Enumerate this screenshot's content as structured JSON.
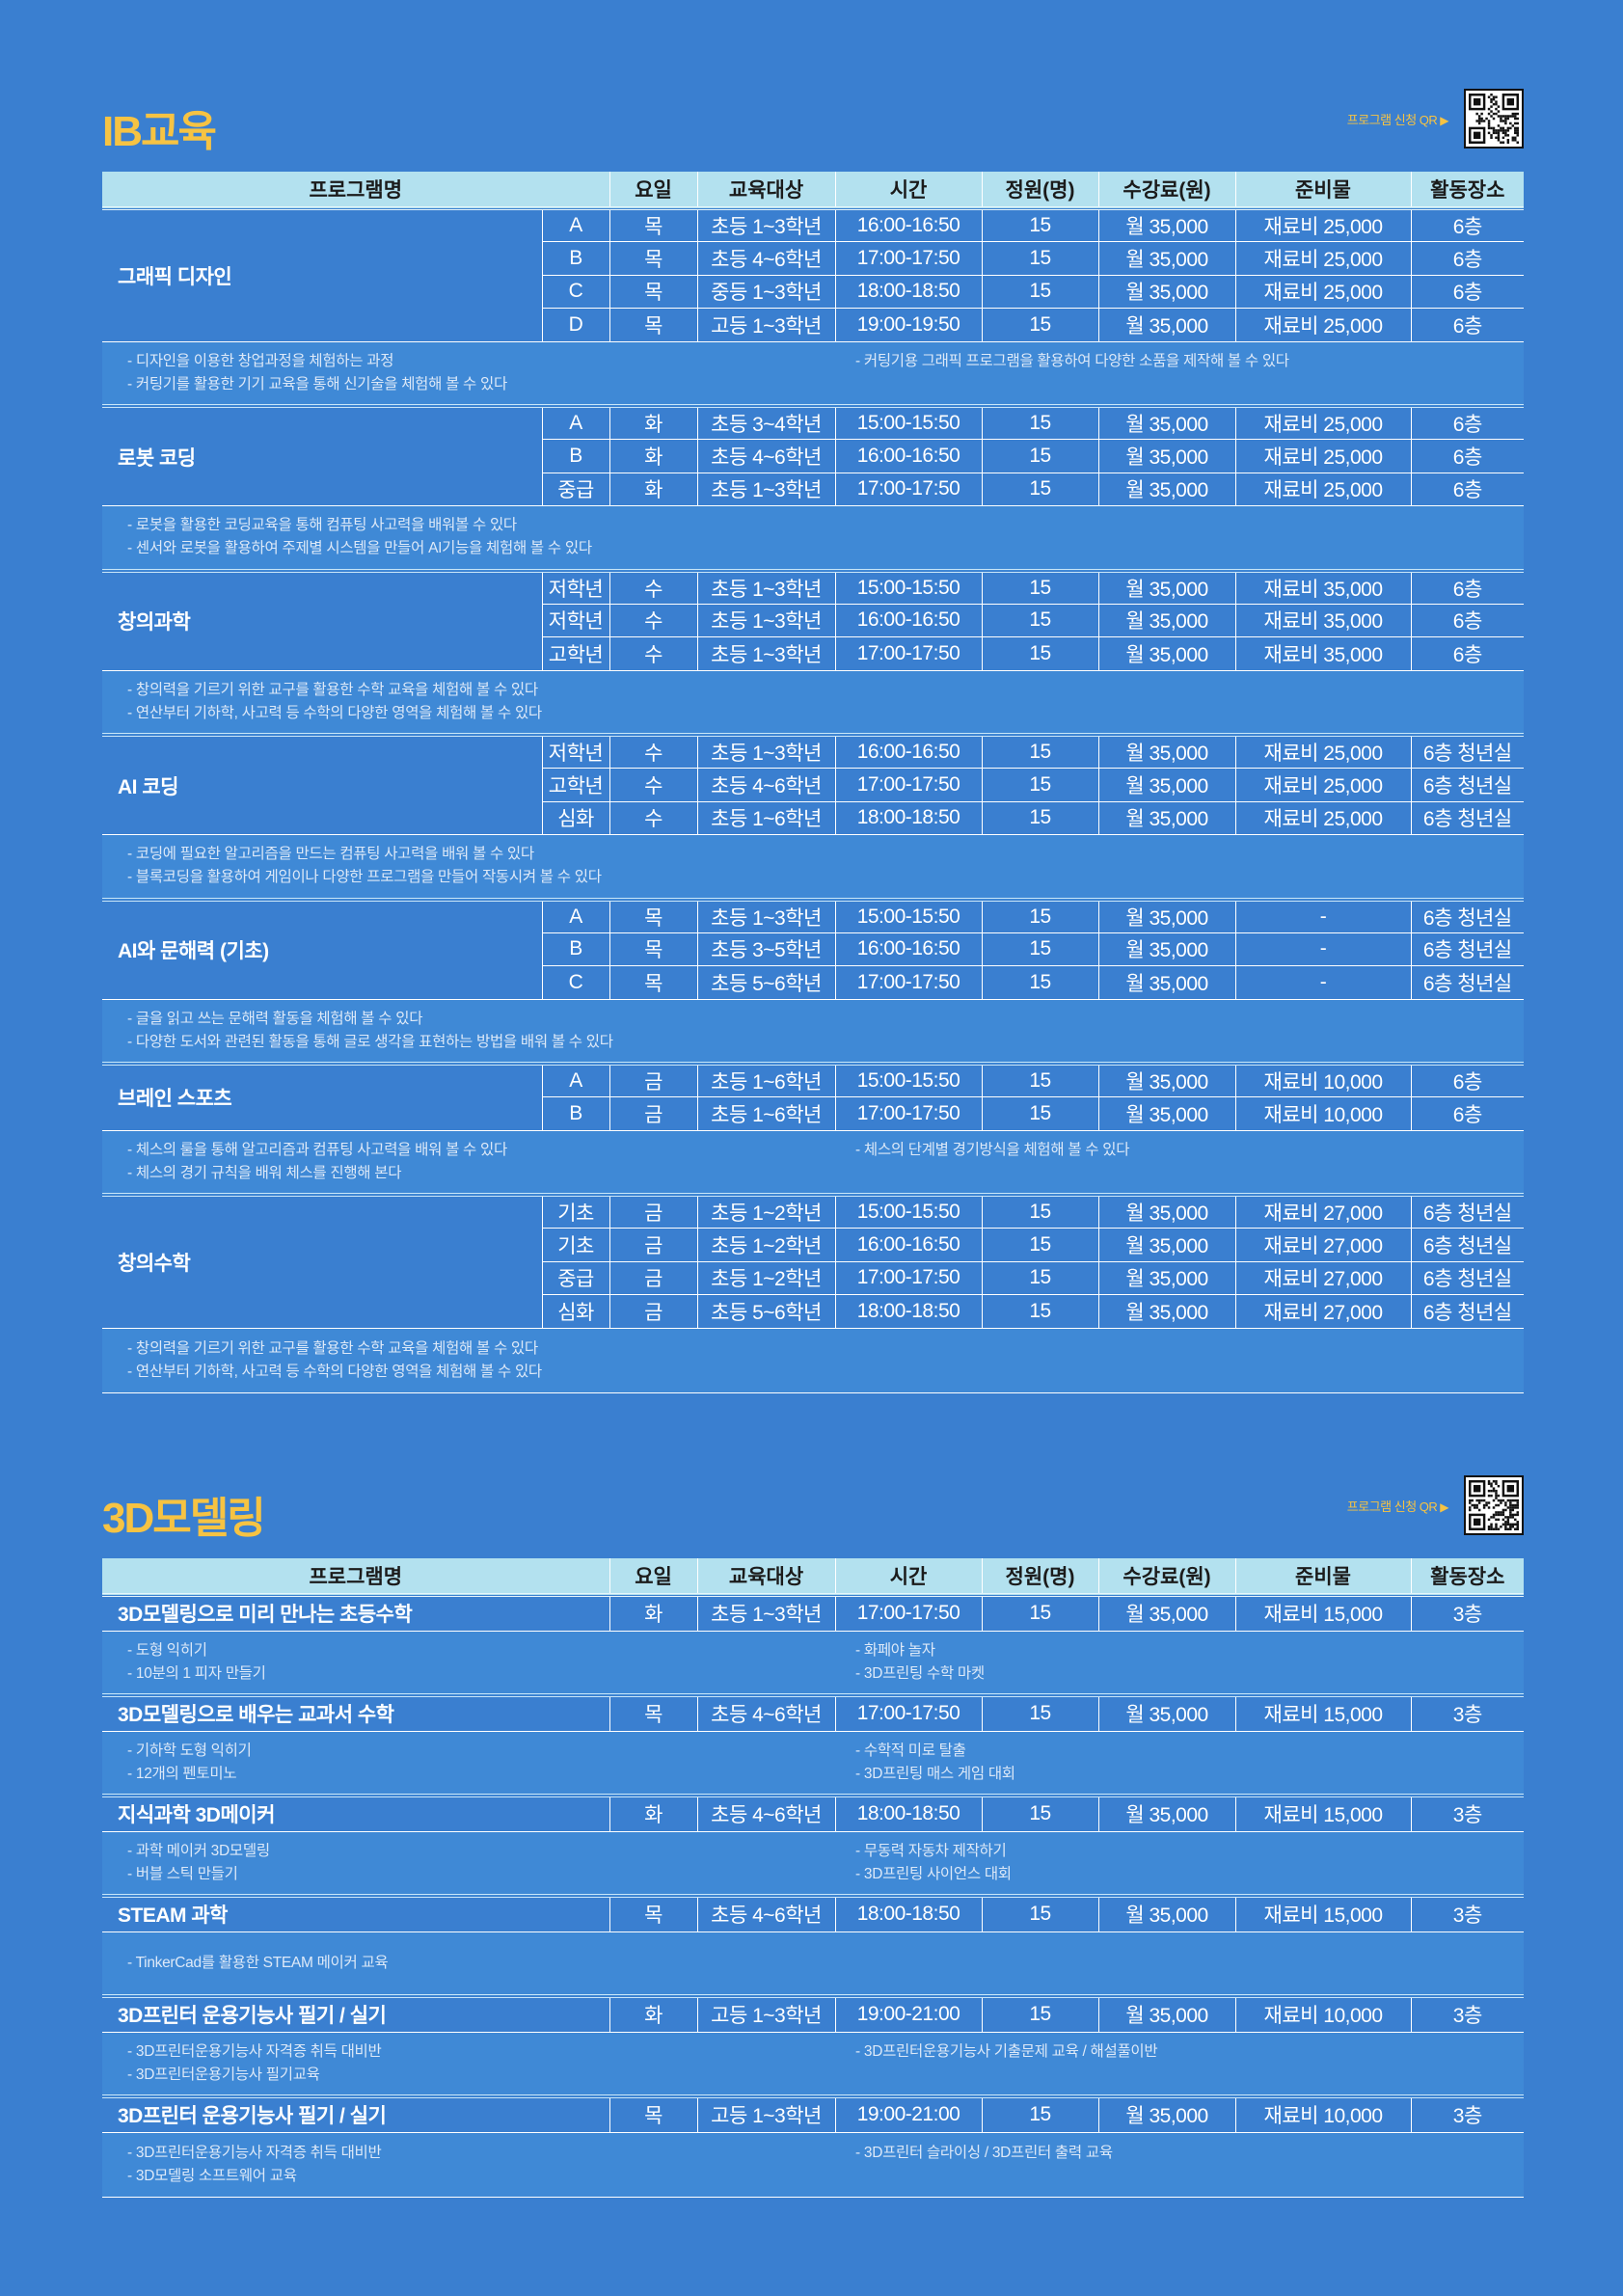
{
  "headers": [
    "프로그램명",
    "요일",
    "교육대상",
    "시간",
    "정원(명)",
    "수강료(원)",
    "준비물",
    "활동장소"
  ],
  "qr_label": "프로그램 신청 QR",
  "colors": {
    "background": "#3a7fd0",
    "title": "#f6c343",
    "header_bg": "#b3e1ef",
    "desc_bg": "#3f89d6"
  },
  "ib": {
    "title": "IB교육",
    "groups": [
      {
        "name": "그래픽 디자인",
        "rows": [
          [
            "A",
            "목",
            "초등 1~3학년",
            "16:00-16:50",
            "15",
            "월 35,000",
            "재료비 25,000",
            "6층"
          ],
          [
            "B",
            "목",
            "초등 4~6학년",
            "17:00-17:50",
            "15",
            "월 35,000",
            "재료비 25,000",
            "6층"
          ],
          [
            "C",
            "목",
            "중등 1~3학년",
            "18:00-18:50",
            "15",
            "월 35,000",
            "재료비 25,000",
            "6층"
          ],
          [
            "D",
            "목",
            "고등 1~3학년",
            "19:00-19:50",
            "15",
            "월 35,000",
            "재료비 25,000",
            "6층"
          ]
        ],
        "desc_left": [
          "- 디자인을 이용한 창업과정을 체험하는 과정",
          "- 커팅기를 활용한 기기 교육을 통해 신기술을 체험해 볼 수 있다"
        ],
        "desc_right": [
          "- 커팅기용 그래픽 프로그램을 활용하여 다양한 소품을 제작해 볼 수 있다"
        ]
      },
      {
        "name": "로봇 코딩",
        "rows": [
          [
            "A",
            "화",
            "초등 3~4학년",
            "15:00-15:50",
            "15",
            "월 35,000",
            "재료비 25,000",
            "6층"
          ],
          [
            "B",
            "화",
            "초등 4~6학년",
            "16:00-16:50",
            "15",
            "월 35,000",
            "재료비 25,000",
            "6층"
          ],
          [
            "중급",
            "화",
            "초등 1~3학년",
            "17:00-17:50",
            "15",
            "월 35,000",
            "재료비 25,000",
            "6층"
          ]
        ],
        "desc_left": [
          "- 로봇을 활용한 코딩교육을 통해 컴퓨팅 사고력을 배워볼 수 있다",
          "- 센서와 로봇을 활용하여 주제별 시스템을 만들어 AI기능을 체험해 볼 수 있다"
        ],
        "desc_right": []
      },
      {
        "name": "창의과학",
        "rows": [
          [
            "저학년",
            "수",
            "초등 1~3학년",
            "15:00-15:50",
            "15",
            "월 35,000",
            "재료비 35,000",
            "6층"
          ],
          [
            "저학년",
            "수",
            "초등 1~3학년",
            "16:00-16:50",
            "15",
            "월 35,000",
            "재료비 35,000",
            "6층"
          ],
          [
            "고학년",
            "수",
            "초등 1~3학년",
            "17:00-17:50",
            "15",
            "월 35,000",
            "재료비 35,000",
            "6층"
          ]
        ],
        "desc_left": [
          "- 창의력을 기르기 위한 교구를 활용한 수학 교육을 체험해 볼 수 있다",
          "- 연산부터 기하학, 사고력 등 수학의 다양한 영역을 체험해 볼 수 있다"
        ],
        "desc_right": []
      },
      {
        "name": "AI 코딩",
        "rows": [
          [
            "저학년",
            "수",
            "초등 1~3학년",
            "16:00-16:50",
            "15",
            "월 35,000",
            "재료비 25,000",
            "6층 청년실"
          ],
          [
            "고학년",
            "수",
            "초등 4~6학년",
            "17:00-17:50",
            "15",
            "월 35,000",
            "재료비 25,000",
            "6층 청년실"
          ],
          [
            "심화",
            "수",
            "초등 1~6학년",
            "18:00-18:50",
            "15",
            "월 35,000",
            "재료비 25,000",
            "6층 청년실"
          ]
        ],
        "desc_left": [
          "- 코딩에 필요한 알고리즘을 만드는 컴퓨팅 사고력을 배워 볼 수 있다",
          "- 블록코딩을 활용하여 게임이나 다양한 프로그램을 만들어 작동시켜 볼 수 있다"
        ],
        "desc_right": []
      },
      {
        "name": "AI와 문해력 (기초)",
        "rows": [
          [
            "A",
            "목",
            "초등 1~3학년",
            "15:00-15:50",
            "15",
            "월 35,000",
            "-",
            "6층 청년실"
          ],
          [
            "B",
            "목",
            "초등 3~5학년",
            "16:00-16:50",
            "15",
            "월 35,000",
            "-",
            "6층 청년실"
          ],
          [
            "C",
            "목",
            "초등 5~6학년",
            "17:00-17:50",
            "15",
            "월 35,000",
            "-",
            "6층 청년실"
          ]
        ],
        "desc_left": [
          "- 글을 읽고 쓰는 문해력 활동을 체험해 볼 수 있다",
          "- 다양한 도서와 관련된 활동을 통해 글로 생각을 표현하는 방법을 배워 볼 수 있다"
        ],
        "desc_right": []
      },
      {
        "name": "브레인 스포츠",
        "rows": [
          [
            "A",
            "금",
            "초등 1~6학년",
            "15:00-15:50",
            "15",
            "월 35,000",
            "재료비 10,000",
            "6층"
          ],
          [
            "B",
            "금",
            "초등 1~6학년",
            "17:00-17:50",
            "15",
            "월 35,000",
            "재료비 10,000",
            "6층"
          ]
        ],
        "desc_left": [
          "- 체스의 룰을 통해 알고리즘과 컴퓨팅 사고력을 배워 볼 수 있다",
          "- 체스의 경기 규칙을 배워 체스를 진행해 본다"
        ],
        "desc_right": [
          "- 체스의 단계별 경기방식을 체험해 볼 수 있다"
        ]
      },
      {
        "name": "창의수학",
        "rows": [
          [
            "기초",
            "금",
            "초등 1~2학년",
            "15:00-15:50",
            "15",
            "월 35,000",
            "재료비 27,000",
            "6층 청년실"
          ],
          [
            "기초",
            "금",
            "초등 1~2학년",
            "16:00-16:50",
            "15",
            "월 35,000",
            "재료비 27,000",
            "6층 청년실"
          ],
          [
            "중급",
            "금",
            "초등 1~2학년",
            "17:00-17:50",
            "15",
            "월 35,000",
            "재료비 27,000",
            "6층 청년실"
          ],
          [
            "심화",
            "금",
            "초등 5~6학년",
            "18:00-18:50",
            "15",
            "월 35,000",
            "재료비 27,000",
            "6층 청년실"
          ]
        ],
        "desc_left": [
          "- 창의력을 기르기 위한 교구를 활용한 수학 교육을 체험해 볼 수 있다",
          "- 연산부터 기하학, 사고력 등 수학의 다양한 영역을 체험해 볼 수 있다"
        ],
        "desc_right": []
      }
    ]
  },
  "modeling": {
    "title": "3D모델링",
    "groups": [
      {
        "name": "3D모델링으로 미리 만나는 초등수학",
        "rows": [
          [
            "화",
            "초등 1~3학년",
            "17:00-17:50",
            "15",
            "월 35,000",
            "재료비 15,000",
            "3층"
          ]
        ],
        "desc_left": [
          "- 도형 익히기",
          "- 10분의 1 피자 만들기"
        ],
        "desc_right": [
          "- 화페야 놀자",
          "- 3D프린팅 수학 마켓"
        ]
      },
      {
        "name": "3D모델링으로 배우는 교과서 수학",
        "rows": [
          [
            "목",
            "초등 4~6학년",
            "17:00-17:50",
            "15",
            "월 35,000",
            "재료비 15,000",
            "3층"
          ]
        ],
        "desc_left": [
          "- 기하학 도형 익히기",
          "- 12개의 펜토미노"
        ],
        "desc_right": [
          "- 수학적 미로 탈출",
          "- 3D프린팅 매스 게임 대회"
        ]
      },
      {
        "name": "지식과학 3D메이커",
        "rows": [
          [
            "화",
            "초등 4~6학년",
            "18:00-18:50",
            "15",
            "월 35,000",
            "재료비 15,000",
            "3층"
          ]
        ],
        "desc_left": [
          "- 과학 메이커 3D모델링",
          "- 버블 스틱 만들기"
        ],
        "desc_right": [
          "- 무동력 자동차 제작하기",
          "- 3D프린팅 사이언스 대회"
        ]
      },
      {
        "name": "STEAM 과학",
        "rows": [
          [
            "목",
            "초등 4~6학년",
            "18:00-18:50",
            "15",
            "월 35,000",
            "재료비 15,000",
            "3층"
          ]
        ],
        "desc_left": [
          "- TinkerCad를 활용한 STEAM 메이커 교육"
        ],
        "desc_right": []
      },
      {
        "name": "3D프린터 운용기능사 필기 / 실기",
        "rows": [
          [
            "화",
            "고등 1~3학년",
            "19:00-21:00",
            "15",
            "월 35,000",
            "재료비 10,000",
            "3층"
          ]
        ],
        "desc_left": [
          "- 3D프린터운용기능사 자격증 취득 대비반",
          "- 3D프린터운용기능사 필기교육"
        ],
        "desc_right": [
          "- 3D프린터운용기능사 기출문제 교육 / 해설풀이반"
        ]
      },
      {
        "name": "3D프린터 운용기능사 필기 / 실기",
        "rows": [
          [
            "목",
            "고등 1~3학년",
            "19:00-21:00",
            "15",
            "월 35,000",
            "재료비 10,000",
            "3층"
          ]
        ],
        "desc_left": [
          "- 3D프린터운용기능사 자격증 취득 대비반",
          "- 3D모델링 소프트웨어 교육"
        ],
        "desc_right": [
          "- 3D프린터 슬라이싱 / 3D프린터 출력 교육"
        ]
      }
    ]
  }
}
